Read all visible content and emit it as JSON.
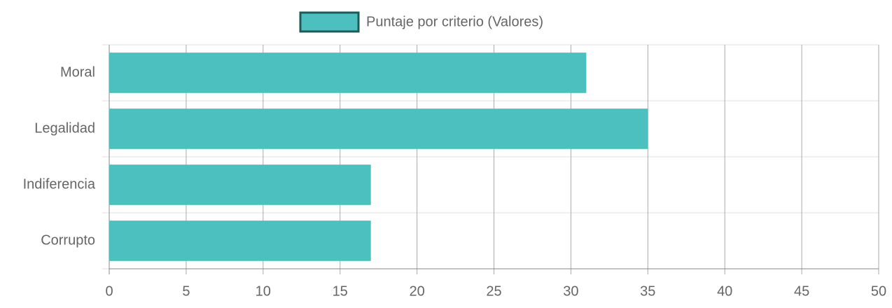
{
  "chart_data": {
    "type": "hbar",
    "categories": [
      "Moral",
      "Legalidad",
      "Indiferencia",
      "Corrupto"
    ],
    "series": [
      {
        "name": "Puntaje por criterio (Valores)",
        "color": "#4bc0bf",
        "values": [
          31,
          35,
          17,
          17
        ]
      }
    ],
    "xlim": [
      0,
      50
    ],
    "xticks": [
      0,
      5,
      10,
      15,
      20,
      25,
      30,
      35,
      40,
      45,
      50
    ],
    "grid": true,
    "legend": "top"
  }
}
